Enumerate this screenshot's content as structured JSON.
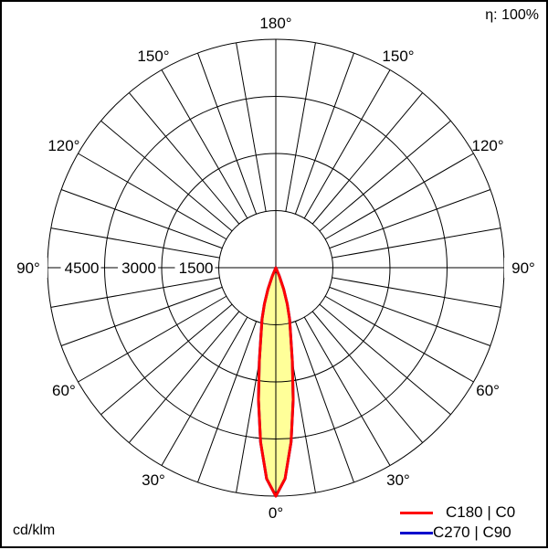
{
  "chart_data": {
    "type": "polar",
    "efficiency_label": "η: 100%",
    "unit_label": "cd/klm",
    "radial_ticks": [
      1500,
      3000,
      4500
    ],
    "radial_max": 6000,
    "angle_labels": [
      "0°",
      "30°",
      "60°",
      "90°",
      "120°",
      "150°",
      "180°"
    ],
    "grid": true,
    "legend_position": "bottom-right",
    "fill_color": "#ffff99",
    "series": [
      {
        "name": "C270 | C90",
        "color": "#0000cc",
        "angles": [
          0,
          2.5,
          5,
          7.5,
          10,
          12.5,
          15,
          17.5,
          20,
          22.5,
          25
        ],
        "values": [
          6000,
          5550,
          4600,
          3500,
          2500,
          1800,
          1400,
          1000,
          600,
          250,
          0
        ]
      },
      {
        "name": "C180 | C0",
        "color": "#ff0000",
        "angles": [
          0,
          2.5,
          5,
          7.5,
          10,
          12.5,
          15,
          17.5,
          20,
          22.5,
          25
        ],
        "values": [
          6000,
          5550,
          4600,
          3500,
          2500,
          1800,
          1400,
          1000,
          600,
          250,
          0
        ]
      }
    ]
  }
}
